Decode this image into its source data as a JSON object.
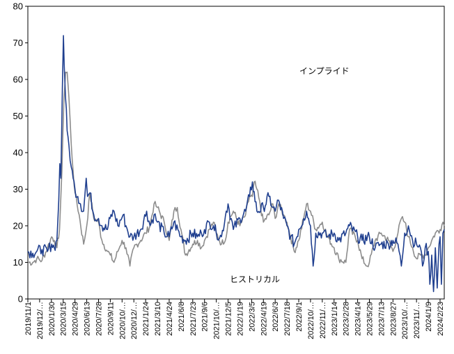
{
  "chart_data": {
    "type": "line",
    "ylim": [
      0,
      80
    ],
    "y_ticks": [
      "0",
      "10",
      "20",
      "30",
      "40",
      "50",
      "60",
      "70",
      "80"
    ],
    "x_tick_labels": [
      "2019/11/1",
      "2019/12/…",
      "2020/1/30",
      "2020/3/15",
      "2020/4/29",
      "2020/6/13",
      "2020/7/28",
      "2020/9/11",
      "2020/10/…",
      "2020/12/…",
      "2021/1/24",
      "2021/3/10",
      "2021/4/24",
      "2021/6/8",
      "2021/7/23",
      "2021/9/6",
      "2021/10/…",
      "2021/12/5",
      "2022/1/19",
      "2022/3/5",
      "2022/4/19",
      "2022/6/3",
      "2022/7/18",
      "2022/9/1",
      "2022/10/…",
      "2022/11/…",
      "2023/1/14",
      "2023/2/28",
      "2023/4/14",
      "2023/5/29",
      "2023/7/13",
      "2023/8/27",
      "2023/10/…",
      "2023/11/…",
      "2024/1/9",
      "2024/2/23"
    ],
    "x_tick_dates": [
      "2019-11-01",
      "2019-12-16",
      "2020-01-30",
      "2020-03-15",
      "2020-04-29",
      "2020-06-13",
      "2020-07-28",
      "2020-09-11",
      "2020-10-26",
      "2020-12-10",
      "2021-01-24",
      "2021-03-10",
      "2021-04-24",
      "2021-06-08",
      "2021-07-23",
      "2021-09-06",
      "2021-10-21",
      "2021-12-05",
      "2022-01-19",
      "2022-03-05",
      "2022-04-19",
      "2022-06-03",
      "2022-07-18",
      "2022-09-01",
      "2022-10-16",
      "2022-11-30",
      "2023-01-14",
      "2023-02-28",
      "2023-04-14",
      "2023-05-29",
      "2023-07-13",
      "2023-08-27",
      "2023-10-11",
      "2023-11-25",
      "2024-01-09",
      "2024-02-23"
    ],
    "annotations": [
      {
        "text": "インプライド",
        "series": "implied"
      },
      {
        "text": "ヒストリカル",
        "series": "historical"
      }
    ],
    "series": [
      {
        "name": "インプライド",
        "color": "#1f3f8f",
        "points": [
          [
            "2019-11-01",
            13
          ],
          [
            "2019-11-20",
            12.5
          ],
          [
            "2019-12-05",
            13
          ],
          [
            "2019-12-25",
            13.5
          ],
          [
            "2020-01-15",
            13
          ],
          [
            "2020-01-31",
            15
          ],
          [
            "2020-02-10",
            14
          ],
          [
            "2020-02-20",
            16
          ],
          [
            "2020-02-27",
            27
          ],
          [
            "2020-03-02",
            37
          ],
          [
            "2020-03-06",
            33
          ],
          [
            "2020-03-12",
            58
          ],
          [
            "2020-03-16",
            72
          ],
          [
            "2020-03-19",
            64
          ],
          [
            "2020-03-24",
            55
          ],
          [
            "2020-03-30",
            46
          ],
          [
            "2020-04-06",
            42
          ],
          [
            "2020-04-15",
            36
          ],
          [
            "2020-04-22",
            33
          ],
          [
            "2020-04-29",
            30
          ],
          [
            "2020-05-10",
            28
          ],
          [
            "2020-05-20",
            26
          ],
          [
            "2020-06-01",
            24
          ],
          [
            "2020-06-11",
            33
          ],
          [
            "2020-06-16",
            28
          ],
          [
            "2020-06-25",
            29
          ],
          [
            "2020-07-10",
            23
          ],
          [
            "2020-07-28",
            22
          ],
          [
            "2020-08-10",
            20
          ],
          [
            "2020-08-31",
            19
          ],
          [
            "2020-09-10",
            22
          ],
          [
            "2020-09-25",
            24
          ],
          [
            "2020-10-10",
            20
          ],
          [
            "2020-10-30",
            23
          ],
          [
            "2020-11-10",
            20
          ],
          [
            "2020-11-25",
            17
          ],
          [
            "2020-12-10",
            17
          ],
          [
            "2021-01-05",
            19
          ],
          [
            "2021-01-28",
            24
          ],
          [
            "2021-02-10",
            20
          ],
          [
            "2021-02-25",
            23
          ],
          [
            "2021-03-10",
            21
          ],
          [
            "2021-04-05",
            18
          ],
          [
            "2021-04-24",
            17
          ],
          [
            "2021-05-12",
            21
          ],
          [
            "2021-06-08",
            17
          ],
          [
            "2021-06-25",
            16
          ],
          [
            "2021-07-23",
            18
          ],
          [
            "2021-08-10",
            17
          ],
          [
            "2021-08-25",
            18
          ],
          [
            "2021-09-06",
            19
          ],
          [
            "2021-09-25",
            21
          ],
          [
            "2021-10-10",
            20
          ],
          [
            "2021-10-21",
            18
          ],
          [
            "2021-11-10",
            17
          ],
          [
            "2021-11-28",
            24
          ],
          [
            "2021-12-05",
            26
          ],
          [
            "2021-12-25",
            19
          ],
          [
            "2022-01-19",
            22
          ],
          [
            "2022-02-10",
            24
          ],
          [
            "2022-02-25",
            28
          ],
          [
            "2022-03-08",
            32
          ],
          [
            "2022-03-25",
            24
          ],
          [
            "2022-04-19",
            25
          ],
          [
            "2022-05-10",
            28
          ],
          [
            "2022-05-25",
            25
          ],
          [
            "2022-06-03",
            24
          ],
          [
            "2022-06-16",
            27
          ],
          [
            "2022-07-05",
            22
          ],
          [
            "2022-07-18",
            20
          ],
          [
            "2022-08-01",
            17
          ],
          [
            "2022-08-15",
            15
          ],
          [
            "2022-09-01",
            19
          ],
          [
            "2022-09-20",
            22
          ],
          [
            "2022-10-01",
            24
          ],
          [
            "2022-10-16",
            20
          ],
          [
            "2022-10-26",
            9
          ],
          [
            "2022-11-05",
            18
          ],
          [
            "2022-11-30",
            18
          ],
          [
            "2022-12-20",
            17
          ],
          [
            "2023-01-14",
            18
          ],
          [
            "2023-02-01",
            16
          ],
          [
            "2023-02-28",
            18
          ],
          [
            "2023-03-14",
            20
          ],
          [
            "2023-04-14",
            17
          ],
          [
            "2023-05-01",
            16
          ],
          [
            "2023-05-29",
            17
          ],
          [
            "2023-06-20",
            14
          ],
          [
            "2023-07-13",
            15
          ],
          [
            "2023-08-10",
            15
          ],
          [
            "2023-08-27",
            16
          ],
          [
            "2023-09-15",
            15
          ],
          [
            "2023-09-28",
            9
          ],
          [
            "2023-10-11",
            18
          ],
          [
            "2023-10-25",
            20
          ],
          [
            "2023-11-10",
            16
          ],
          [
            "2023-11-25",
            15
          ],
          [
            "2023-12-10",
            14
          ],
          [
            "2023-12-18",
            9
          ],
          [
            "2023-12-28",
            14
          ],
          [
            "2024-01-09",
            13
          ],
          [
            "2024-01-15",
            4
          ],
          [
            "2024-01-22",
            12
          ],
          [
            "2024-01-29",
            2
          ],
          [
            "2024-02-05",
            14
          ],
          [
            "2024-02-12",
            3
          ],
          [
            "2024-02-19",
            15
          ],
          [
            "2024-02-23",
            17
          ],
          [
            "2024-02-28",
            4
          ],
          [
            "2024-03-05",
            18
          ],
          [
            "2024-03-10",
            19
          ]
        ]
      },
      {
        "name": "ヒストリカル",
        "color": "#8c8c8c",
        "points": [
          [
            "2019-11-01",
            10
          ],
          [
            "2019-11-20",
            10
          ],
          [
            "2019-12-05",
            11
          ],
          [
            "2019-12-25",
            10.5
          ],
          [
            "2020-01-15",
            14
          ],
          [
            "2020-01-31",
            17
          ],
          [
            "2020-02-10",
            16
          ],
          [
            "2020-02-20",
            14
          ],
          [
            "2020-03-01",
            19
          ],
          [
            "2020-03-10",
            35
          ],
          [
            "2020-03-18",
            55
          ],
          [
            "2020-03-24",
            62
          ],
          [
            "2020-03-30",
            62
          ],
          [
            "2020-04-06",
            55
          ],
          [
            "2020-04-15",
            42
          ],
          [
            "2020-04-22",
            35
          ],
          [
            "2020-04-29",
            29
          ],
          [
            "2020-05-15",
            23
          ],
          [
            "2020-06-01",
            15
          ],
          [
            "2020-06-13",
            20
          ],
          [
            "2020-06-25",
            29
          ],
          [
            "2020-07-10",
            22
          ],
          [
            "2020-07-28",
            21
          ],
          [
            "2020-08-10",
            16
          ],
          [
            "2020-08-31",
            13
          ],
          [
            "2020-09-11",
            12
          ],
          [
            "2020-09-25",
            10
          ],
          [
            "2020-10-10",
            13
          ],
          [
            "2020-10-26",
            16
          ],
          [
            "2020-11-10",
            14
          ],
          [
            "2020-11-25",
            9
          ],
          [
            "2020-12-10",
            14
          ],
          [
            "2021-01-05",
            16
          ],
          [
            "2021-01-24",
            18
          ],
          [
            "2021-02-10",
            20
          ],
          [
            "2021-02-25",
            26
          ],
          [
            "2021-03-10",
            25
          ],
          [
            "2021-04-05",
            21
          ],
          [
            "2021-04-24",
            16
          ],
          [
            "2021-05-12",
            24
          ],
          [
            "2021-05-25",
            25
          ],
          [
            "2021-06-08",
            19
          ],
          [
            "2021-06-25",
            12
          ],
          [
            "2021-07-23",
            15
          ],
          [
            "2021-08-10",
            16
          ],
          [
            "2021-08-25",
            14
          ],
          [
            "2021-09-06",
            16
          ],
          [
            "2021-09-25",
            19
          ],
          [
            "2021-10-10",
            21
          ],
          [
            "2021-10-21",
            18
          ],
          [
            "2021-11-10",
            15
          ],
          [
            "2021-11-28",
            17
          ],
          [
            "2021-12-05",
            21
          ],
          [
            "2021-12-25",
            24
          ],
          [
            "2022-01-19",
            20
          ],
          [
            "2022-02-10",
            23
          ],
          [
            "2022-02-25",
            28
          ],
          [
            "2022-03-08",
            28
          ],
          [
            "2022-03-15",
            32
          ],
          [
            "2022-03-25",
            30
          ],
          [
            "2022-04-19",
            21
          ],
          [
            "2022-05-10",
            23
          ],
          [
            "2022-05-25",
            26
          ],
          [
            "2022-06-03",
            22
          ],
          [
            "2022-06-16",
            26
          ],
          [
            "2022-07-05",
            23
          ],
          [
            "2022-07-18",
            21
          ],
          [
            "2022-08-01",
            17
          ],
          [
            "2022-08-15",
            13
          ],
          [
            "2022-09-01",
            16
          ],
          [
            "2022-09-20",
            22
          ],
          [
            "2022-10-01",
            26
          ],
          [
            "2022-10-16",
            24
          ],
          [
            "2022-11-05",
            19
          ],
          [
            "2022-11-30",
            21
          ],
          [
            "2022-12-20",
            17
          ],
          [
            "2023-01-14",
            14
          ],
          [
            "2023-02-01",
            11
          ],
          [
            "2023-02-28",
            10
          ],
          [
            "2023-03-14",
            19
          ],
          [
            "2023-04-14",
            16
          ],
          [
            "2023-05-01",
            11
          ],
          [
            "2023-05-20",
            9
          ],
          [
            "2023-05-29",
            10
          ],
          [
            "2023-06-20",
            16
          ],
          [
            "2023-07-13",
            18
          ],
          [
            "2023-08-10",
            16
          ],
          [
            "2023-08-27",
            13
          ],
          [
            "2023-09-15",
            18
          ],
          [
            "2023-09-28",
            22
          ],
          [
            "2023-10-11",
            21
          ],
          [
            "2023-10-25",
            17
          ],
          [
            "2023-11-10",
            14
          ],
          [
            "2023-11-25",
            11
          ],
          [
            "2023-12-10",
            12
          ],
          [
            "2023-12-28",
            12
          ],
          [
            "2024-01-09",
            14
          ],
          [
            "2024-01-22",
            16
          ],
          [
            "2024-02-05",
            18
          ],
          [
            "2024-02-23",
            19
          ],
          [
            "2024-03-05",
            21
          ],
          [
            "2024-03-10",
            20
          ]
        ]
      }
    ]
  }
}
